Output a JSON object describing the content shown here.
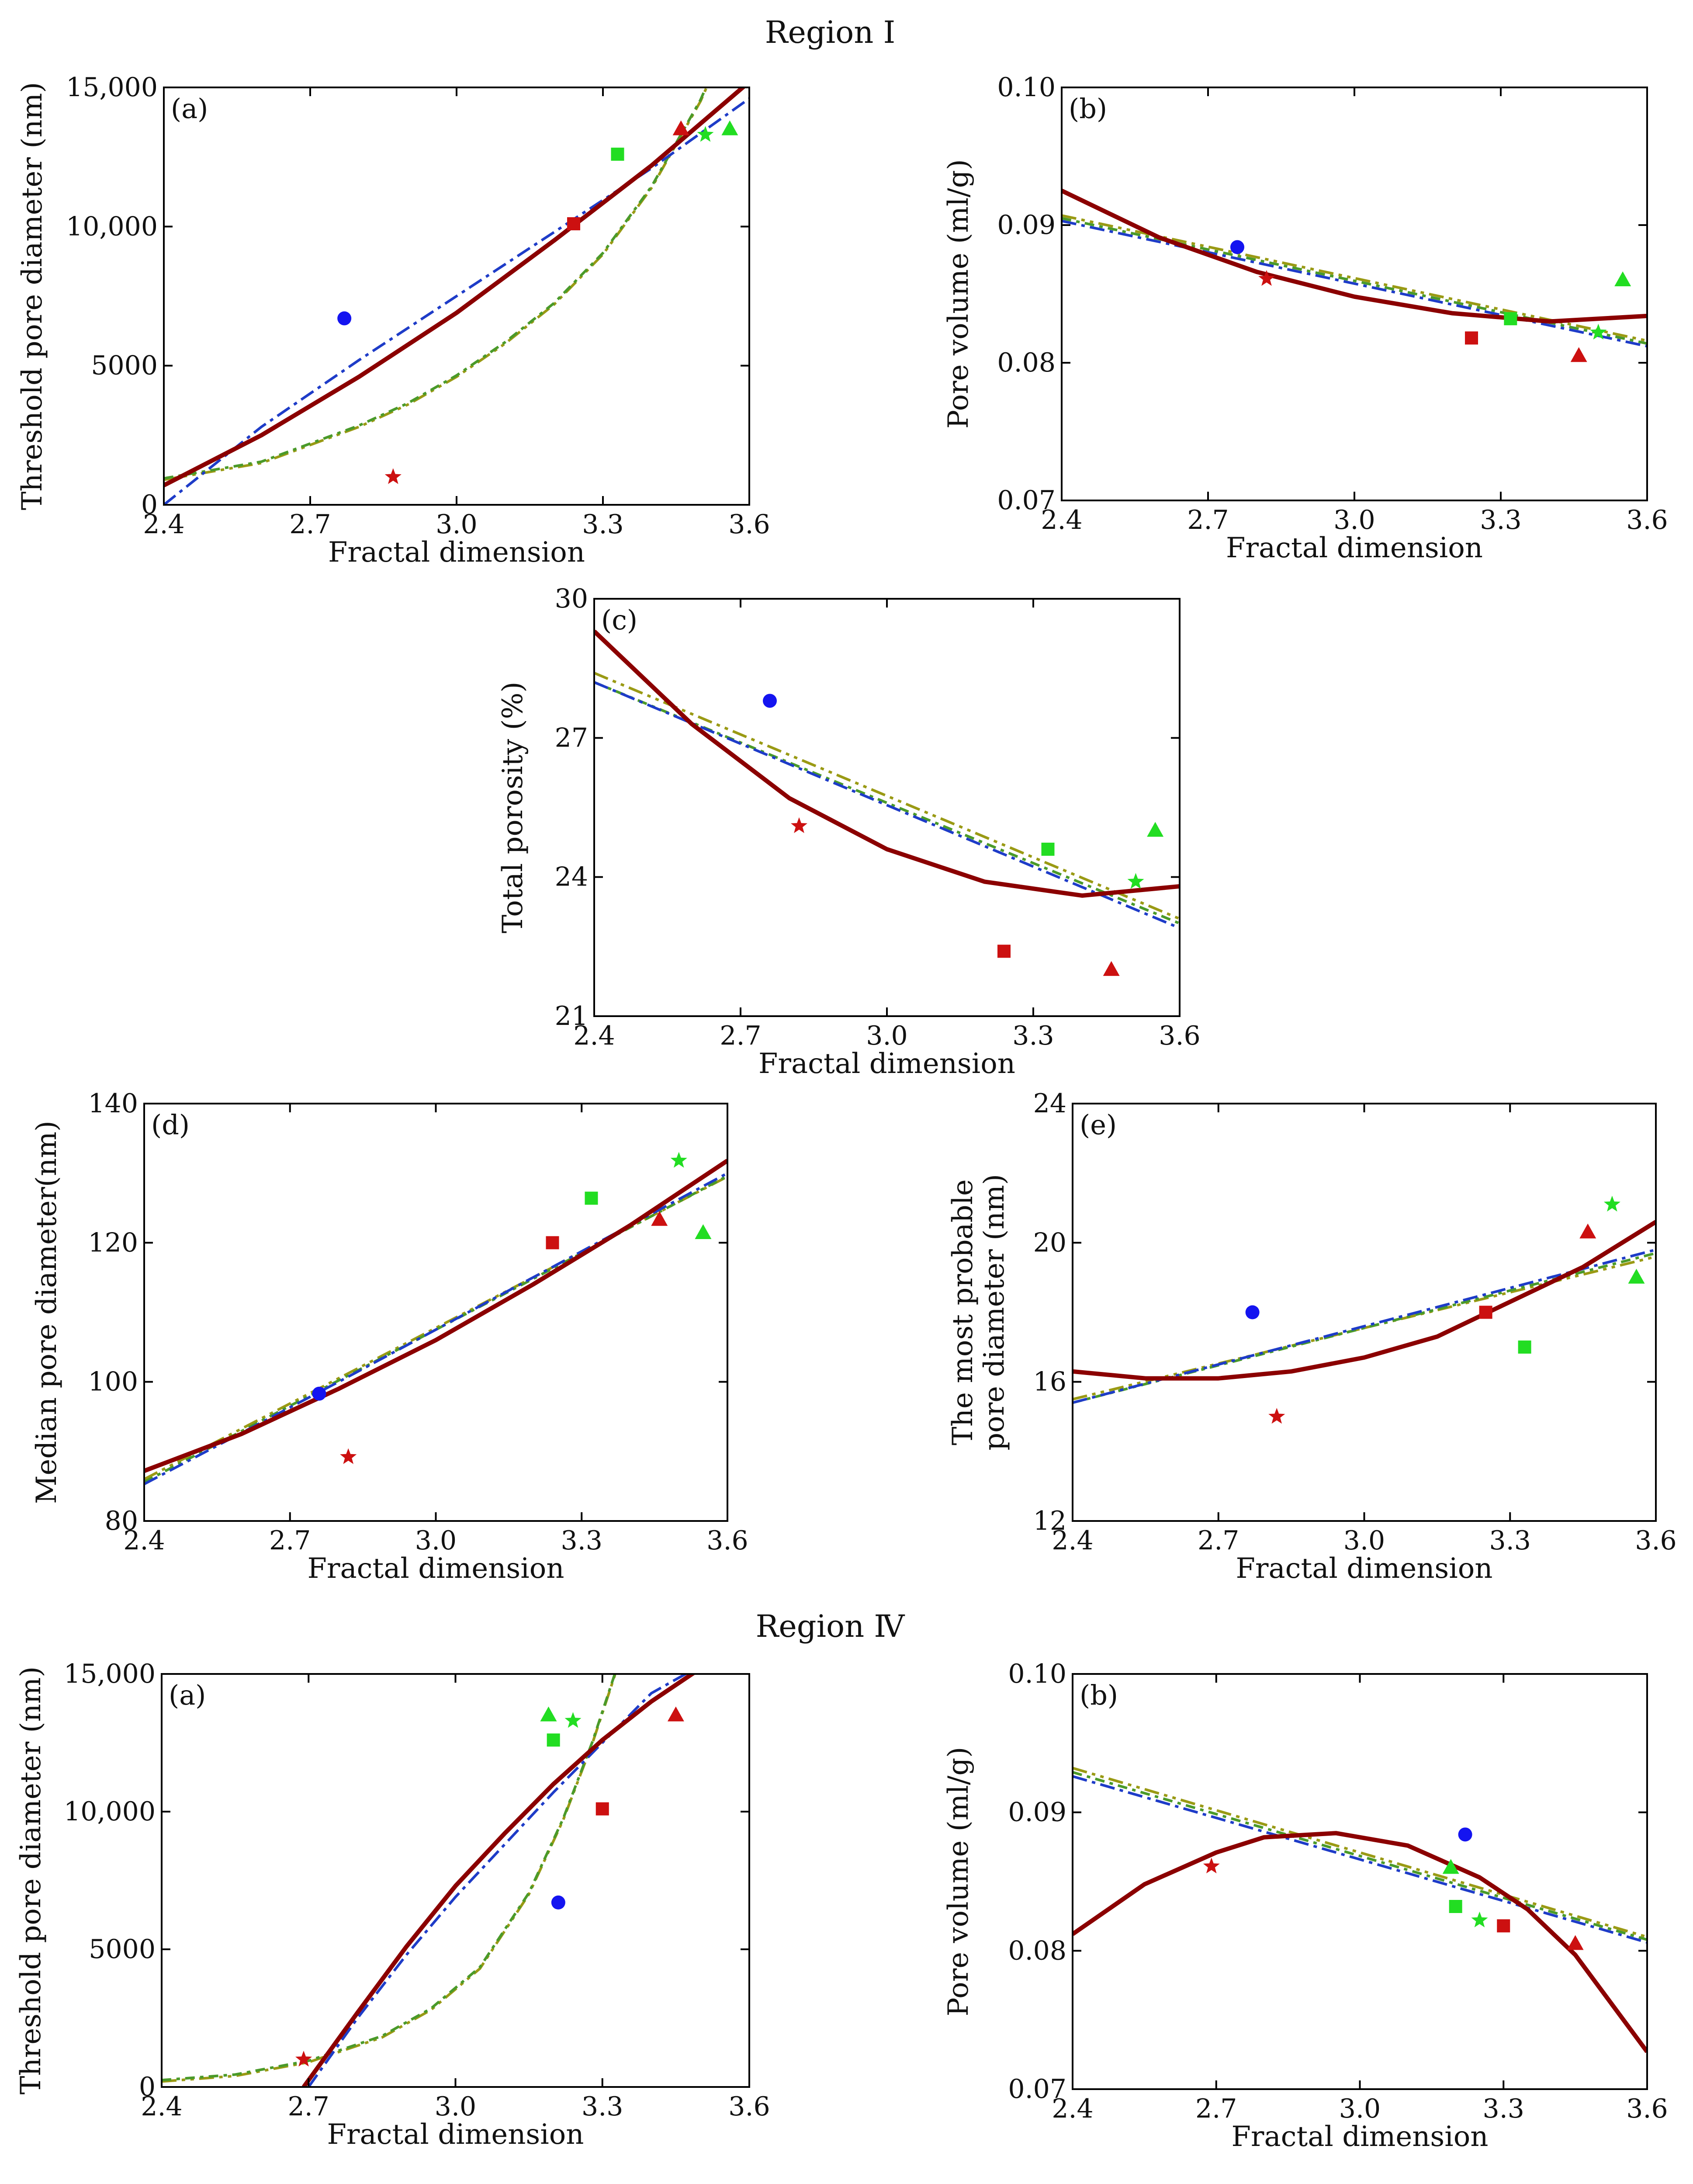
{
  "figure": {
    "region_titles": [
      {
        "id": "region-1",
        "text": "Region  Ⅰ"
      },
      {
        "id": "region-4",
        "text": "Region  Ⅳ"
      }
    ]
  },
  "colors": {
    "fit_solid": "#8B0000",
    "fit_blue": "#1E3CC8",
    "fit_olive": "#9A9A14",
    "fit_green": "#4A9A2A",
    "blue_marker": "#1414F0",
    "red_marker": "#CC1010",
    "green_marker": "#22DD22"
  },
  "chart_data": [
    {
      "id": "r1a",
      "panel_label": "(a)",
      "type": "scatter",
      "xlabel": "Fractal dimension",
      "ylabel": "Threshold pore diameter (nm)",
      "xlim": [
        2.4,
        3.6
      ],
      "ylim": [
        0,
        15000
      ],
      "xticks": [
        2.4,
        2.7,
        3.0,
        3.3,
        3.6
      ],
      "xtick_labels": [
        "2.4",
        "2.7",
        "3.0",
        "3.3",
        "3.6"
      ],
      "yticks": [
        0,
        5000,
        10000,
        15000
      ],
      "ytick_labels": [
        "0",
        "5000",
        "10,000",
        "15,000"
      ],
      "points": [
        {
          "shape": "circle",
          "color": "blue",
          "x": 2.77,
          "y": 6700
        },
        {
          "shape": "star",
          "color": "red",
          "x": 2.87,
          "y": 1000
        },
        {
          "shape": "square",
          "color": "red",
          "x": 3.24,
          "y": 10100
        },
        {
          "shape": "triangle",
          "color": "red",
          "x": 3.46,
          "y": 13500
        },
        {
          "shape": "square",
          "color": "green",
          "x": 3.33,
          "y": 12600
        },
        {
          "shape": "star",
          "color": "green",
          "x": 3.51,
          "y": 13300
        },
        {
          "shape": "triangle",
          "color": "green",
          "x": 3.56,
          "y": 13500
        }
      ],
      "fits": [
        {
          "style": "solid",
          "x": [
            2.4,
            2.6,
            2.8,
            3.0,
            3.2,
            3.4,
            3.6
          ],
          "y": [
            700,
            2500,
            4600,
            6900,
            9500,
            12200,
            15200
          ]
        },
        {
          "style": "blue",
          "x": [
            2.4,
            2.6,
            2.8,
            3.0,
            3.2,
            3.4,
            3.6
          ],
          "y": [
            0,
            2800,
            5200,
            7500,
            9800,
            12100,
            14600
          ]
        },
        {
          "style": "olive",
          "x": [
            2.4,
            2.6,
            2.8,
            2.9,
            3.0,
            3.1,
            3.2,
            3.3,
            3.4,
            3.5,
            3.55
          ],
          "y": [
            900,
            1500,
            2800,
            3600,
            4600,
            5800,
            7200,
            9000,
            11400,
            14500,
            16500
          ]
        },
        {
          "style": "green",
          "x": [
            2.4,
            2.6,
            2.8,
            2.9,
            3.0,
            3.1,
            3.2,
            3.3,
            3.4,
            3.5,
            3.55
          ],
          "y": [
            950,
            1550,
            2850,
            3650,
            4650,
            5850,
            7250,
            9050,
            11450,
            14550,
            16550
          ]
        }
      ]
    },
    {
      "id": "r1b",
      "panel_label": "(b)",
      "type": "scatter",
      "xlabel": "Fractal dimension",
      "ylabel": "Pore volume (ml/g)",
      "xlim": [
        2.4,
        3.6
      ],
      "ylim": [
        0.07,
        0.1
      ],
      "xticks": [
        2.4,
        2.7,
        3.0,
        3.3,
        3.6
      ],
      "xtick_labels": [
        "2.4",
        "2.7",
        "3.0",
        "3.3",
        "3.6"
      ],
      "yticks": [
        0.07,
        0.08,
        0.09,
        0.1
      ],
      "ytick_labels": [
        "0.07",
        "0.08",
        "0.09",
        "0.10"
      ],
      "points": [
        {
          "shape": "circle",
          "color": "blue",
          "x": 2.76,
          "y": 0.0884
        },
        {
          "shape": "star",
          "color": "red",
          "x": 2.82,
          "y": 0.0861
        },
        {
          "shape": "square",
          "color": "red",
          "x": 3.24,
          "y": 0.0818
        },
        {
          "shape": "triangle",
          "color": "red",
          "x": 3.46,
          "y": 0.0805
        },
        {
          "shape": "square",
          "color": "green",
          "x": 3.32,
          "y": 0.0832
        },
        {
          "shape": "star",
          "color": "green",
          "x": 3.5,
          "y": 0.0822
        },
        {
          "shape": "triangle",
          "color": "green",
          "x": 3.55,
          "y": 0.086
        }
      ],
      "fits": [
        {
          "style": "solid",
          "x": [
            2.4,
            2.6,
            2.8,
            3.0,
            3.2,
            3.4,
            3.6
          ],
          "y": [
            0.0925,
            0.0891,
            0.0866,
            0.0848,
            0.0836,
            0.083,
            0.0834
          ]
        },
        {
          "style": "blue",
          "x": [
            2.4,
            3.6
          ],
          "y": [
            0.0903,
            0.0812
          ]
        },
        {
          "style": "olive",
          "x": [
            2.4,
            3.6
          ],
          "y": [
            0.0907,
            0.0816
          ]
        },
        {
          "style": "green",
          "x": [
            2.4,
            3.6
          ],
          "y": [
            0.0905,
            0.0814
          ]
        }
      ]
    },
    {
      "id": "r1c",
      "panel_label": "(c)",
      "type": "scatter",
      "xlabel": "Fractal dimension",
      "ylabel": "Total porosity (%)",
      "xlim": [
        2.4,
        3.6
      ],
      "ylim": [
        21,
        30
      ],
      "xticks": [
        2.4,
        2.7,
        3.0,
        3.3,
        3.6
      ],
      "xtick_labels": [
        "2.4",
        "2.7",
        "3.0",
        "3.3",
        "3.6"
      ],
      "yticks": [
        21,
        24,
        27,
        30
      ],
      "ytick_labels": [
        "21",
        "24",
        "27",
        "30"
      ],
      "points": [
        {
          "shape": "circle",
          "color": "blue",
          "x": 2.76,
          "y": 27.8
        },
        {
          "shape": "star",
          "color": "red",
          "x": 2.82,
          "y": 25.1
        },
        {
          "shape": "square",
          "color": "red",
          "x": 3.24,
          "y": 22.4
        },
        {
          "shape": "triangle",
          "color": "red",
          "x": 3.46,
          "y": 22.0
        },
        {
          "shape": "square",
          "color": "green",
          "x": 3.33,
          "y": 24.6
        },
        {
          "shape": "star",
          "color": "green",
          "x": 3.51,
          "y": 23.9
        },
        {
          "shape": "triangle",
          "color": "green",
          "x": 3.55,
          "y": 25.0
        }
      ],
      "fits": [
        {
          "style": "solid",
          "x": [
            2.4,
            2.6,
            2.8,
            3.0,
            3.2,
            3.4,
            3.6
          ],
          "y": [
            29.3,
            27.3,
            25.7,
            24.6,
            23.9,
            23.6,
            23.8
          ]
        },
        {
          "style": "blue",
          "x": [
            2.4,
            3.6
          ],
          "y": [
            28.2,
            22.9
          ]
        },
        {
          "style": "olive",
          "x": [
            2.4,
            3.6
          ],
          "y": [
            28.4,
            23.1
          ]
        },
        {
          "style": "green",
          "x": [
            2.4,
            3.6
          ],
          "y": [
            28.2,
            23.0
          ]
        }
      ]
    },
    {
      "id": "r1d",
      "panel_label": "(d)",
      "type": "scatter",
      "xlabel": "Fractal dimension",
      "ylabel": "Median pore diameter(nm)",
      "xlim": [
        2.4,
        3.6
      ],
      "ylim": [
        80,
        140
      ],
      "xticks": [
        2.4,
        2.7,
        3.0,
        3.3,
        3.6
      ],
      "xtick_labels": [
        "2.4",
        "2.7",
        "3.0",
        "3.3",
        "3.6"
      ],
      "yticks": [
        80,
        100,
        120,
        140
      ],
      "ytick_labels": [
        "80",
        "100",
        "120",
        "140"
      ],
      "points": [
        {
          "shape": "circle",
          "color": "blue",
          "x": 2.76,
          "y": 98.3
        },
        {
          "shape": "star",
          "color": "red",
          "x": 2.82,
          "y": 89.2
        },
        {
          "shape": "square",
          "color": "red",
          "x": 3.24,
          "y": 120.0
        },
        {
          "shape": "triangle",
          "color": "red",
          "x": 3.46,
          "y": 123.3
        },
        {
          "shape": "square",
          "color": "green",
          "x": 3.32,
          "y": 126.4
        },
        {
          "shape": "star",
          "color": "green",
          "x": 3.5,
          "y": 131.8
        },
        {
          "shape": "triangle",
          "color": "green",
          "x": 3.55,
          "y": 121.4
        }
      ],
      "fits": [
        {
          "style": "solid",
          "x": [
            2.4,
            2.6,
            2.8,
            3.0,
            3.2,
            3.4,
            3.6
          ],
          "y": [
            87.2,
            92.5,
            99.0,
            106.0,
            114.0,
            122.5,
            131.8
          ]
        },
        {
          "style": "blue",
          "x": [
            2.4,
            2.8,
            3.2,
            3.6
          ],
          "y": [
            85.3,
            100.0,
            115.0,
            130.0
          ]
        },
        {
          "style": "olive",
          "x": [
            2.4,
            2.8,
            3.2,
            3.6
          ],
          "y": [
            86.0,
            100.5,
            115.0,
            129.5
          ]
        },
        {
          "style": "green",
          "x": [
            2.4,
            2.8,
            3.2,
            3.6
          ],
          "y": [
            85.6,
            100.2,
            114.8,
            129.6
          ]
        }
      ]
    },
    {
      "id": "r1e",
      "panel_label": "(e)",
      "type": "scatter",
      "xlabel": "Fractal dimension",
      "ylabel": "The most probable pore diameter (nm)",
      "ylabel_lines": [
        "The most probable",
        "pore diameter (nm)"
      ],
      "xlim": [
        2.4,
        3.6
      ],
      "ylim": [
        12,
        24
      ],
      "xticks": [
        2.4,
        2.7,
        3.0,
        3.3,
        3.6
      ],
      "xtick_labels": [
        "2.4",
        "2.7",
        "3.0",
        "3.3",
        "3.6"
      ],
      "yticks": [
        12,
        16,
        20,
        24
      ],
      "ytick_labels": [
        "12",
        "16",
        "20",
        "24"
      ],
      "points": [
        {
          "shape": "circle",
          "color": "blue",
          "x": 2.77,
          "y": 18.0
        },
        {
          "shape": "star",
          "color": "red",
          "x": 2.82,
          "y": 15.0
        },
        {
          "shape": "square",
          "color": "red",
          "x": 3.25,
          "y": 18.0
        },
        {
          "shape": "triangle",
          "color": "red",
          "x": 3.46,
          "y": 20.3
        },
        {
          "shape": "square",
          "color": "green",
          "x": 3.33,
          "y": 17.0
        },
        {
          "shape": "star",
          "color": "green",
          "x": 3.51,
          "y": 21.1
        },
        {
          "shape": "triangle",
          "color": "green",
          "x": 3.56,
          "y": 19.0
        }
      ],
      "fits": [
        {
          "style": "solid",
          "x": [
            2.4,
            2.55,
            2.7,
            2.85,
            3.0,
            3.15,
            3.3,
            3.45,
            3.6
          ],
          "y": [
            16.3,
            16.1,
            16.1,
            16.3,
            16.7,
            17.3,
            18.3,
            19.3,
            20.6
          ]
        },
        {
          "style": "blue",
          "x": [
            2.4,
            3.6
          ],
          "y": [
            15.4,
            19.8
          ]
        },
        {
          "style": "olive",
          "x": [
            2.4,
            3.6
          ],
          "y": [
            15.5,
            19.6
          ]
        },
        {
          "style": "green",
          "x": [
            2.4,
            3.6
          ],
          "y": [
            15.4,
            19.7
          ]
        }
      ]
    },
    {
      "id": "r4a",
      "panel_label": "(a)",
      "type": "scatter",
      "xlabel": "Fractal dimension",
      "ylabel": "Threshold pore diameter (nm)",
      "xlim": [
        2.4,
        3.6
      ],
      "ylim": [
        0,
        15000
      ],
      "xticks": [
        2.4,
        2.7,
        3.0,
        3.3,
        3.6
      ],
      "xtick_labels": [
        "2.4",
        "2.7",
        "3.0",
        "3.3",
        "3.6"
      ],
      "yticks": [
        0,
        5000,
        10000,
        15000
      ],
      "ytick_labels": [
        "0",
        "5000",
        "10,000",
        "15,000"
      ],
      "points": [
        {
          "shape": "circle",
          "color": "blue",
          "x": 3.21,
          "y": 6700
        },
        {
          "shape": "star",
          "color": "red",
          "x": 2.69,
          "y": 1000
        },
        {
          "shape": "square",
          "color": "red",
          "x": 3.3,
          "y": 10100
        },
        {
          "shape": "triangle",
          "color": "red",
          "x": 3.45,
          "y": 13500
        },
        {
          "shape": "square",
          "color": "green",
          "x": 3.2,
          "y": 12600
        },
        {
          "shape": "star",
          "color": "green",
          "x": 3.24,
          "y": 13300
        },
        {
          "shape": "triangle",
          "color": "green",
          "x": 3.19,
          "y": 13500
        }
      ],
      "fits": [
        {
          "style": "solid",
          "x": [
            2.69,
            2.8,
            2.9,
            3.0,
            3.1,
            3.2,
            3.3,
            3.4,
            3.5
          ],
          "y": [
            0,
            2700,
            5100,
            7300,
            9200,
            11000,
            12600,
            14000,
            15200
          ]
        },
        {
          "style": "blue",
          "x": [
            2.7,
            2.8,
            2.9,
            3.0,
            3.1,
            3.2,
            3.3,
            3.4,
            3.48
          ],
          "y": [
            0,
            2500,
            4800,
            6900,
            8800,
            10700,
            12500,
            14300,
            15100
          ]
        },
        {
          "style": "olive",
          "x": [
            2.4,
            2.55,
            2.7,
            2.85,
            2.95,
            3.05,
            3.15,
            3.22,
            3.28,
            3.33
          ],
          "y": [
            200,
            400,
            900,
            1800,
            2800,
            4300,
            7000,
            9700,
            12500,
            15200
          ]
        },
        {
          "style": "green",
          "x": [
            2.4,
            2.55,
            2.7,
            2.85,
            2.95,
            3.05,
            3.15,
            3.22,
            3.28,
            3.33
          ],
          "y": [
            250,
            450,
            950,
            1850,
            2850,
            4350,
            7050,
            9750,
            12550,
            15250
          ]
        }
      ]
    },
    {
      "id": "r4b",
      "panel_label": "(b)",
      "type": "scatter",
      "xlabel": "Fractal dimension",
      "ylabel": "Pore volume (ml/g)",
      "xlim": [
        2.4,
        3.6
      ],
      "ylim": [
        0.07,
        0.1
      ],
      "xticks": [
        2.4,
        2.7,
        3.0,
        3.3,
        3.6
      ],
      "xtick_labels": [
        "2.4",
        "2.7",
        "3.0",
        "3.3",
        "3.6"
      ],
      "yticks": [
        0.07,
        0.08,
        0.09,
        0.1
      ],
      "ytick_labels": [
        "0.07",
        "0.08",
        "0.09",
        "0.10"
      ],
      "points": [
        {
          "shape": "circle",
          "color": "blue",
          "x": 3.22,
          "y": 0.0884
        },
        {
          "shape": "star",
          "color": "red",
          "x": 2.69,
          "y": 0.0861
        },
        {
          "shape": "square",
          "color": "red",
          "x": 3.3,
          "y": 0.0818
        },
        {
          "shape": "triangle",
          "color": "red",
          "x": 3.45,
          "y": 0.0805
        },
        {
          "shape": "square",
          "color": "green",
          "x": 3.2,
          "y": 0.0832
        },
        {
          "shape": "star",
          "color": "green",
          "x": 3.25,
          "y": 0.0822
        },
        {
          "shape": "triangle",
          "color": "green",
          "x": 3.19,
          "y": 0.086
        }
      ],
      "fits": [
        {
          "style": "solid",
          "x": [
            2.4,
            2.55,
            2.7,
            2.8,
            2.95,
            3.1,
            3.25,
            3.35,
            3.45,
            3.6
          ],
          "y": [
            0.0812,
            0.0848,
            0.0871,
            0.0882,
            0.0885,
            0.0876,
            0.0853,
            0.083,
            0.0797,
            0.0727
          ]
        },
        {
          "style": "blue",
          "x": [
            2.4,
            3.6
          ],
          "y": [
            0.0926,
            0.0806
          ]
        },
        {
          "style": "olive",
          "x": [
            2.4,
            3.6
          ],
          "y": [
            0.0932,
            0.081
          ]
        },
        {
          "style": "green",
          "x": [
            2.4,
            3.6
          ],
          "y": [
            0.0929,
            0.0808
          ]
        }
      ]
    }
  ]
}
